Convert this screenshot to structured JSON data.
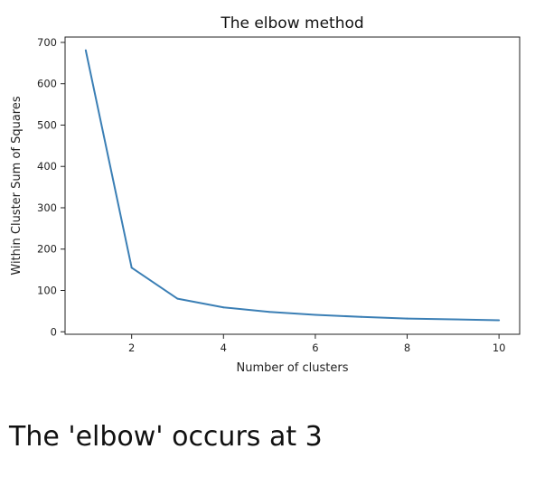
{
  "chart_data": {
    "type": "line",
    "title": "The elbow method",
    "xlabel": "Number of clusters",
    "ylabel": "Within Cluster Sum of Squares",
    "x": [
      1,
      2,
      3,
      4,
      5,
      6,
      7,
      8,
      9,
      10
    ],
    "series": [
      {
        "values": [
          681,
          155,
          80,
          59,
          48,
          41,
          36,
          32,
          30,
          28
        ],
        "color": "#3b7fb5"
      }
    ],
    "xticks": [
      2,
      4,
      6,
      8,
      10
    ],
    "yticks": [
      0,
      100,
      200,
      300,
      400,
      500,
      600,
      700
    ],
    "xlim": [
      0.55,
      10.45
    ],
    "ylim": [
      -6,
      713
    ],
    "grid": false,
    "legend": "none"
  },
  "caption": "The 'elbow' occurs at 3"
}
